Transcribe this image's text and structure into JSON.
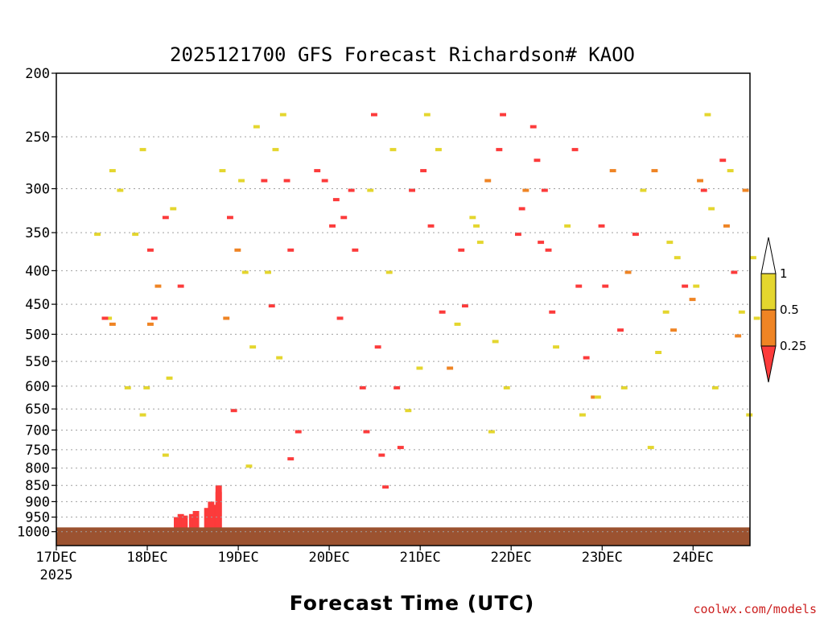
{
  "chart_data": {
    "type": "heatmap",
    "title": "2025121700 GFS Forecast Richardson# KAOO",
    "xlabel": "Forecast Time (UTC)",
    "ylabel": "",
    "y_axis": {
      "scale": "log",
      "range": [
        1050,
        200
      ],
      "ticks": [
        200,
        250,
        300,
        350,
        400,
        450,
        500,
        550,
        600,
        650,
        700,
        750,
        800,
        850,
        900,
        950,
        1000
      ],
      "grid": "dotted"
    },
    "x_axis": {
      "range": [
        "2025-12-17 00Z",
        "2025-12-24 15Z"
      ],
      "ticks": [
        {
          "label": "17DEC",
          "sub": "2025",
          "day": 0
        },
        {
          "label": "18DEC",
          "sub": "",
          "day": 1
        },
        {
          "label": "19DEC",
          "sub": "",
          "day": 2
        },
        {
          "label": "20DEC",
          "sub": "",
          "day": 3
        },
        {
          "label": "21DEC",
          "sub": "",
          "day": 4
        },
        {
          "label": "22DEC",
          "sub": "",
          "day": 5
        },
        {
          "label": "23DEC",
          "sub": "",
          "day": 6
        },
        {
          "label": "24DEC",
          "sub": "",
          "day": 7
        }
      ]
    },
    "legend": {
      "placement": "right",
      "levels": [
        "1",
        "0.5",
        "0.25"
      ],
      "bins": [
        {
          "range": "> 1",
          "color": "#ffffff"
        },
        {
          "range": "0.5 to 1",
          "color": "#e4d62e"
        },
        {
          "range": "0.25 to 0.5",
          "color": "#ef8424"
        },
        {
          "range": "< 0.25",
          "color": "#fc3b3b"
        }
      ]
    },
    "surface_color": "#9b5230",
    "cells": [
      [
        0,
        35,
        1050,
        940,
        "red"
      ],
      [
        1,
        32,
        1050,
        940,
        "red"
      ],
      [
        2,
        33,
        1050,
        945,
        "red"
      ],
      [
        3,
        31,
        1050,
        950,
        "red"
      ],
      [
        4,
        39,
        1050,
        920,
        "red"
      ],
      [
        5,
        41,
        1050,
        910,
        "red"
      ],
      [
        6,
        40,
        1050,
        900,
        "red"
      ],
      [
        7,
        42,
        1050,
        870,
        "red"
      ],
      [
        8,
        42,
        1050,
        850,
        "red"
      ],
      [
        9,
        36,
        1050,
        930,
        "red"
      ],
      [
        0,
        13,
        440,
        470,
        "yellow"
      ],
      [
        1,
        12,
        440,
        470,
        "red"
      ],
      [
        2,
        10,
        300,
        350,
        "yellow"
      ],
      [
        3,
        14,
        250,
        280,
        "yellow"
      ],
      [
        3,
        14,
        450,
        480,
        "orange"
      ],
      [
        4,
        16,
        270,
        300,
        "yellow"
      ],
      [
        4,
        18,
        560,
        600,
        "yellow"
      ],
      [
        5,
        20,
        300,
        350,
        "yellow"
      ],
      [
        5,
        24,
        440,
        480,
        "orange"
      ],
      [
        5,
        22,
        620,
        660,
        "yellow"
      ],
      [
        6,
        22,
        220,
        260,
        "yellow"
      ],
      [
        6,
        24,
        330,
        370,
        "red"
      ],
      [
        6,
        23,
        560,
        600,
        "yellow"
      ],
      [
        7,
        28,
        300,
        330,
        "red"
      ],
      [
        7,
        26,
        380,
        420,
        "orange"
      ],
      [
        7,
        28,
        700,
        760,
        "yellow"
      ],
      [
        8,
        25,
        440,
        470,
        "red"
      ],
      [
        8,
        29,
        530,
        580,
        "yellow"
      ],
      [
        9,
        30,
        280,
        320,
        "yellow"
      ],
      [
        9,
        32,
        380,
        420,
        "red"
      ],
      [
        0,
        45,
        280,
        330,
        "red"
      ],
      [
        1,
        47,
        330,
        370,
        "orange"
      ],
      [
        2,
        43,
        240,
        280,
        "yellow"
      ],
      [
        3,
        49,
        350,
        400,
        "yellow"
      ],
      [
        4,
        51,
        480,
        520,
        "yellow"
      ],
      [
        5,
        46,
        600,
        650,
        "red"
      ],
      [
        6,
        50,
        730,
        790,
        "yellow"
      ],
      [
        7,
        48,
        260,
        290,
        "yellow"
      ],
      [
        8,
        44,
        440,
        470,
        "orange"
      ],
      [
        9,
        52,
        200,
        240,
        "yellow"
      ],
      [
        0,
        54,
        260,
        290,
        "red"
      ],
      [
        1,
        57,
        230,
        260,
        "yellow"
      ],
      [
        2,
        59,
        200,
        230,
        "yellow"
      ],
      [
        3,
        61,
        320,
        370,
        "red"
      ],
      [
        4,
        56,
        410,
        450,
        "red"
      ],
      [
        5,
        58,
        500,
        540,
        "yellow"
      ],
      [
        6,
        61,
        720,
        770,
        "red"
      ],
      [
        7,
        63,
        650,
        700,
        "red"
      ],
      [
        8,
        60,
        260,
        290,
        "red"
      ],
      [
        9,
        55,
        360,
        400,
        "yellow"
      ],
      [
        0,
        70,
        250,
        290,
        "red"
      ],
      [
        1,
        73,
        260,
        310,
        "red"
      ],
      [
        2,
        75,
        290,
        330,
        "red"
      ],
      [
        3,
        68,
        250,
        280,
        "red"
      ],
      [
        4,
        72,
        300,
        340,
        "red"
      ],
      [
        5,
        77,
        270,
        300,
        "red"
      ],
      [
        6,
        78,
        330,
        370,
        "red"
      ],
      [
        7,
        74,
        430,
        470,
        "red"
      ],
      [
        8,
        80,
        540,
        600,
        "red"
      ],
      [
        9,
        81,
        640,
        700,
        "red"
      ],
      [
        0,
        84,
        460,
        520,
        "red"
      ],
      [
        1,
        85,
        700,
        760,
        "red"
      ],
      [
        2,
        86,
        780,
        850,
        "red"
      ],
      [
        3,
        83,
        200,
        230,
        "red"
      ],
      [
        4,
        88,
        220,
        260,
        "yellow"
      ],
      [
        5,
        87,
        360,
        400,
        "yellow"
      ],
      [
        6,
        89,
        560,
        600,
        "red"
      ],
      [
        7,
        90,
        680,
        740,
        "red"
      ],
      [
        8,
        82,
        260,
        300,
        "yellow"
      ],
      [
        9,
        92,
        600,
        650,
        "yellow"
      ],
      [
        0,
        96,
        240,
        280,
        "red"
      ],
      [
        1,
        98,
        300,
        340,
        "red"
      ],
      [
        2,
        101,
        420,
        460,
        "red"
      ],
      [
        3,
        95,
        520,
        560,
        "yellow"
      ],
      [
        4,
        103,
        520,
        560,
        "orange"
      ],
      [
        5,
        97,
        200,
        230,
        "yellow"
      ],
      [
        6,
        105,
        440,
        480,
        "yellow"
      ],
      [
        7,
        100,
        220,
        260,
        "yellow"
      ],
      [
        8,
        93,
        260,
        300,
        "red"
      ],
      [
        9,
        106,
        330,
        370,
        "red"
      ],
      [
        0,
        109,
        290,
        330,
        "yellow"
      ],
      [
        1,
        111,
        320,
        360,
        "yellow"
      ],
      [
        2,
        107,
        410,
        450,
        "red"
      ],
      [
        3,
        113,
        250,
        290,
        "orange"
      ],
      [
        4,
        115,
        470,
        510,
        "yellow"
      ],
      [
        5,
        116,
        220,
        260,
        "red"
      ],
      [
        6,
        118,
        560,
        600,
        "yellow"
      ],
      [
        7,
        114,
        640,
        700,
        "yellow"
      ],
      [
        8,
        110,
        300,
        340,
        "yellow"
      ],
      [
        9,
        117,
        200,
        230,
        "red"
      ],
      [
        0,
        121,
        300,
        350,
        "red"
      ],
      [
        1,
        123,
        260,
        300,
        "orange"
      ],
      [
        2,
        125,
        200,
        240,
        "red"
      ],
      [
        3,
        122,
        280,
        320,
        "red"
      ],
      [
        4,
        127,
        320,
        360,
        "red"
      ],
      [
        5,
        126,
        240,
        270,
        "red"
      ],
      [
        6,
        128,
        270,
        300,
        "red"
      ],
      [
        7,
        129,
        330,
        370,
        "red"
      ],
      [
        8,
        130,
        420,
        460,
        "red"
      ],
      [
        9,
        131,
        480,
        520,
        "yellow"
      ],
      [
        0,
        136,
        220,
        260,
        "red"
      ],
      [
        1,
        134,
        300,
        340,
        "yellow"
      ],
      [
        2,
        137,
        380,
        420,
        "red"
      ],
      [
        3,
        139,
        490,
        540,
        "red"
      ],
      [
        4,
        141,
        580,
        620,
        "orange"
      ],
      [
        5,
        138,
        620,
        660,
        "yellow"
      ],
      [
        6,
        142,
        560,
        620,
        "yellow"
      ],
      [
        7,
        144,
        380,
        420,
        "red"
      ],
      [
        8,
        146,
        240,
        280,
        "orange"
      ],
      [
        9,
        143,
        300,
        340,
        "red"
      ],
      [
        0,
        148,
        450,
        490,
        "red"
      ],
      [
        1,
        150,
        360,
        400,
        "orange"
      ],
      [
        2,
        152,
        310,
        350,
        "red"
      ],
      [
        3,
        154,
        260,
        300,
        "yellow"
      ],
      [
        4,
        149,
        540,
        600,
        "yellow"
      ],
      [
        5,
        156,
        680,
        740,
        "yellow"
      ],
      [
        6,
        158,
        480,
        530,
        "yellow"
      ],
      [
        7,
        157,
        250,
        280,
        "orange"
      ],
      [
        8,
        160,
        420,
        460,
        "yellow"
      ],
      [
        9,
        161,
        320,
        360,
        "yellow"
      ],
      [
        0,
        163,
        330,
        380,
        "yellow"
      ],
      [
        1,
        165,
        380,
        420,
        "red"
      ],
      [
        2,
        167,
        400,
        440,
        "orange"
      ],
      [
        3,
        162,
        450,
        490,
        "orange"
      ],
      [
        4,
        168,
        360,
        420,
        "yellow"
      ],
      [
        5,
        170,
        260,
        300,
        "red"
      ],
      [
        6,
        172,
        280,
        320,
        "yellow"
      ],
      [
        7,
        169,
        250,
        290,
        "orange"
      ],
      [
        8,
        171,
        200,
        230,
        "yellow"
      ],
      [
        9,
        173,
        540,
        600,
        "yellow"
      ],
      [
        0,
        175,
        230,
        270,
        "red"
      ],
      [
        1,
        176,
        300,
        340,
        "orange"
      ],
      [
        2,
        178,
        360,
        400,
        "red"
      ],
      [
        3,
        180,
        420,
        460,
        "yellow"
      ],
      [
        4,
        179,
        460,
        500,
        "orange"
      ],
      [
        5,
        181,
        260,
        300,
        "orange"
      ],
      [
        6,
        182,
        600,
        660,
        "yellow"
      ],
      [
        7,
        183,
        350,
        380,
        "yellow"
      ],
      [
        8,
        177,
        240,
        280,
        "yellow"
      ],
      [
        9,
        184,
        420,
        470,
        "yellow"
      ]
    ]
  },
  "credit": "coolwx.com/models"
}
